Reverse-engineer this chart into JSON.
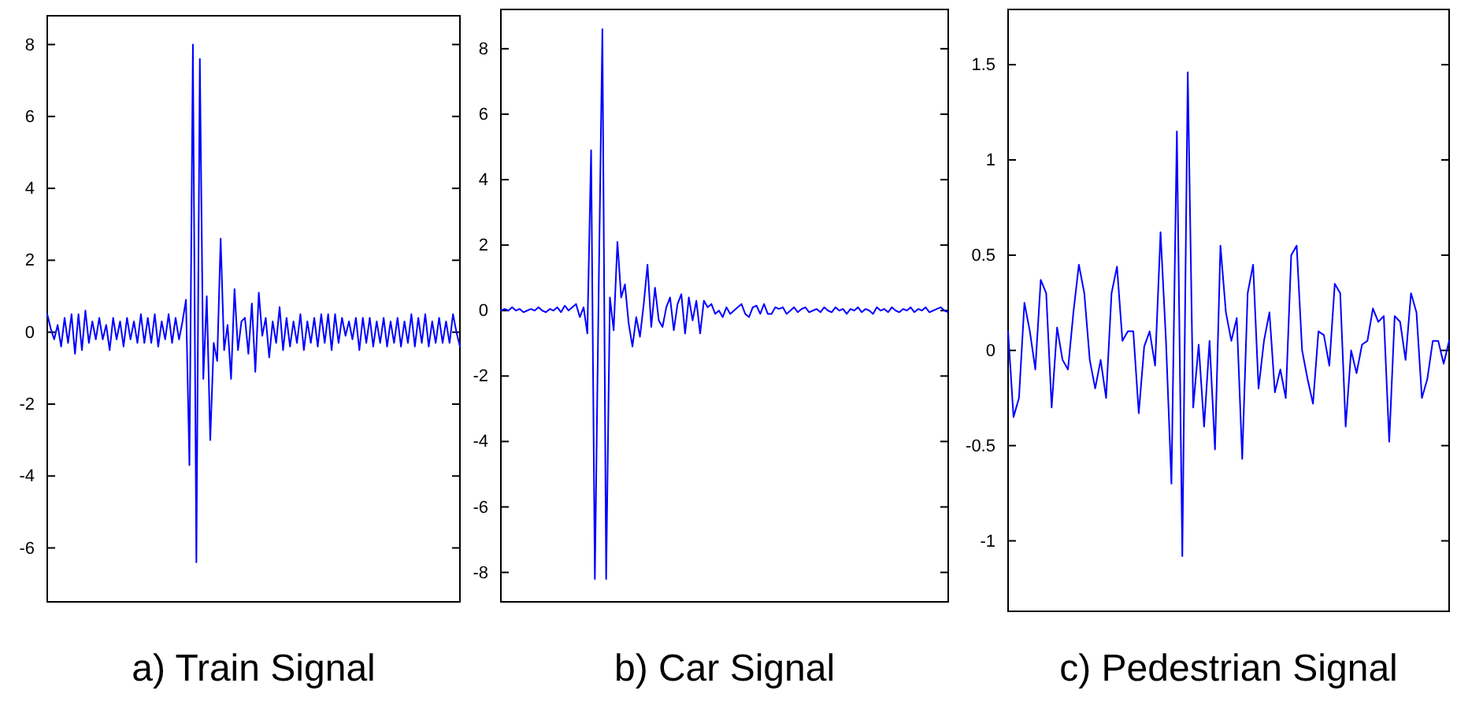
{
  "chart_data": [
    {
      "type": "line",
      "title": "a) Train Signal",
      "tick_labels": "y",
      "ylim": [
        -7.5,
        8.8
      ],
      "yticks": [
        -6,
        -4,
        -2,
        0,
        2,
        4,
        6,
        8
      ],
      "categories": [
        null,
        null,
        null,
        null,
        null,
        null,
        null,
        null,
        null,
        null,
        null,
        null,
        null,
        null,
        null,
        null,
        null,
        null,
        null,
        null,
        null,
        null,
        null,
        null,
        null,
        null,
        null,
        null,
        null,
        null,
        null,
        null,
        null,
        null,
        null,
        null,
        null,
        null,
        null,
        null,
        null,
        null,
        null,
        null,
        null,
        null,
        null,
        null,
        null,
        null,
        null,
        null,
        null,
        null,
        null,
        null,
        null,
        null,
        null,
        null,
        null,
        null,
        null,
        null,
        null,
        null,
        null,
        null,
        null,
        null,
        null,
        null,
        null,
        null,
        null,
        null,
        null,
        null,
        null,
        null,
        null,
        null,
        null,
        null,
        null,
        null,
        null,
        null,
        null,
        null,
        null,
        null,
        null,
        null,
        null,
        null,
        null,
        null,
        null,
        null,
        null,
        null,
        null,
        null,
        null,
        null,
        null,
        null,
        null,
        null,
        null,
        null,
        null,
        null,
        null,
        null,
        null,
        null,
        null,
        null
      ],
      "series": [
        {
          "color": "#0000ff",
          "values": [
            0.5,
            0.1,
            -0.2,
            0.2,
            -0.4,
            0.4,
            -0.3,
            0.5,
            -0.6,
            0.5,
            -0.5,
            0.6,
            -0.3,
            0.3,
            -0.2,
            0.4,
            -0.2,
            0.2,
            -0.5,
            0.4,
            -0.2,
            0.3,
            -0.4,
            0.4,
            -0.2,
            0.3,
            -0.3,
            0.5,
            -0.3,
            0.4,
            -0.3,
            0.5,
            -0.4,
            0.3,
            -0.2,
            0.5,
            -0.3,
            0.4,
            -0.2,
            0.3,
            0.9,
            -3.7,
            8.0,
            -6.4,
            7.6,
            -1.3,
            1.0,
            -3.0,
            -0.3,
            -0.8,
            2.6,
            -0.5,
            0.2,
            -1.3,
            1.2,
            -0.5,
            0.3,
            0.4,
            -0.6,
            0.8,
            -1.1,
            1.1,
            -0.1,
            0.4,
            -0.7,
            0.3,
            -0.3,
            0.7,
            -0.5,
            0.4,
            -0.4,
            0.3,
            -0.3,
            0.5,
            -0.5,
            0.3,
            -0.3,
            0.4,
            -0.4,
            0.5,
            -0.3,
            0.5,
            -0.5,
            0.5,
            -0.3,
            0.4,
            -0.1,
            0.3,
            -0.2,
            0.4,
            -0.5,
            0.4,
            -0.3,
            0.4,
            -0.4,
            0.3,
            -0.3,
            0.4,
            -0.4,
            0.3,
            -0.3,
            0.4,
            -0.4,
            0.3,
            -0.3,
            0.5,
            -0.4,
            0.4,
            -0.3,
            0.5,
            -0.4,
            0.3,
            -0.3,
            0.4,
            -0.3,
            0.3,
            -0.3,
            0.5,
            0.0,
            -0.4
          ]
        }
      ]
    },
    {
      "type": "line",
      "title": "b) Car Signal",
      "tick_labels": "y",
      "ylim": [
        -8.9,
        9.2
      ],
      "yticks": [
        -8,
        -6,
        -4,
        -2,
        0,
        2,
        4,
        6,
        8
      ],
      "categories": [
        null,
        null,
        null,
        null,
        null,
        null,
        null,
        null,
        null,
        null,
        null,
        null,
        null,
        null,
        null,
        null,
        null,
        null,
        null,
        null,
        null,
        null,
        null,
        null,
        null,
        null,
        null,
        null,
        null,
        null,
        null,
        null,
        null,
        null,
        null,
        null,
        null,
        null,
        null,
        null,
        null,
        null,
        null,
        null,
        null,
        null,
        null,
        null,
        null,
        null,
        null,
        null,
        null,
        null,
        null,
        null,
        null,
        null,
        null,
        null,
        null,
        null,
        null,
        null,
        null,
        null,
        null,
        null,
        null,
        null,
        null,
        null,
        null,
        null,
        null,
        null,
        null,
        null,
        null,
        null,
        null,
        null,
        null,
        null,
        null,
        null,
        null,
        null,
        null,
        null,
        null,
        null,
        null,
        null,
        null,
        null,
        null,
        null,
        null,
        null,
        null,
        null,
        null,
        null,
        null,
        null,
        null,
        null,
        null,
        null,
        null,
        null,
        null,
        null,
        null,
        null,
        null,
        null,
        null,
        null
      ],
      "series": [
        {
          "color": "#0000ff",
          "values": [
            0.0,
            0.05,
            0.0,
            0.1,
            0.0,
            0.05,
            -0.05,
            0.0,
            0.05,
            0.0,
            0.1,
            0.0,
            -0.05,
            0.05,
            0.0,
            0.1,
            -0.05,
            0.15,
            0.0,
            0.1,
            0.2,
            -0.2,
            0.1,
            -0.7,
            4.9,
            -8.2,
            0.5,
            8.6,
            -8.2,
            0.4,
            -0.6,
            2.1,
            0.4,
            0.8,
            -0.4,
            -1.1,
            -0.2,
            -0.8,
            0.2,
            1.4,
            -0.5,
            0.7,
            -0.3,
            -0.5,
            0.1,
            0.4,
            -0.6,
            0.2,
            0.5,
            -0.7,
            0.4,
            -0.3,
            0.3,
            -0.7,
            0.3,
            0.1,
            0.2,
            -0.1,
            0.0,
            -0.2,
            0.1,
            -0.1,
            0.0,
            0.1,
            0.2,
            -0.1,
            -0.2,
            0.1,
            0.15,
            -0.1,
            0.2,
            -0.1,
            -0.1,
            0.1,
            0.05,
            0.1,
            -0.1,
            0.0,
            0.1,
            -0.05,
            0.05,
            0.1,
            -0.05,
            0.0,
            0.05,
            -0.05,
            0.1,
            0.0,
            -0.05,
            0.1,
            0.0,
            0.05,
            -0.1,
            0.05,
            0.0,
            0.1,
            -0.05,
            0.05,
            0.0,
            -0.1,
            0.1,
            0.0,
            0.05,
            -0.05,
            0.1,
            0.0,
            -0.05,
            0.05,
            0.0,
            0.1,
            -0.05,
            0.05,
            0.0,
            0.1,
            -0.05,
            0.0,
            0.05,
            0.1,
            0.0,
            -0.05
          ]
        }
      ]
    },
    {
      "type": "line",
      "title": "c) Pedestrian Signal",
      "tick_labels": "y",
      "ylim": [
        -1.37,
        1.79
      ],
      "yticks": [
        -1,
        -0.5,
        0,
        0.5,
        1,
        1.5
      ],
      "categories": [
        null,
        null,
        null,
        null,
        null,
        null,
        null,
        null,
        null,
        null,
        null,
        null,
        null,
        null,
        null,
        null,
        null,
        null,
        null,
        null,
        null,
        null,
        null,
        null,
        null,
        null,
        null,
        null,
        null,
        null,
        null,
        null,
        null,
        null,
        null,
        null,
        null,
        null,
        null,
        null,
        null,
        null,
        null,
        null,
        null,
        null,
        null,
        null,
        null,
        null,
        null,
        null,
        null,
        null,
        null,
        null,
        null,
        null,
        null,
        null,
        null,
        null,
        null,
        null,
        null,
        null,
        null,
        null,
        null,
        null,
        null,
        null,
        null,
        null,
        null,
        null,
        null,
        null,
        null,
        null,
        null,
        null
      ],
      "series": [
        {
          "color": "#0000ff",
          "values": [
            0.1,
            -0.35,
            -0.25,
            0.25,
            0.1,
            -0.1,
            0.37,
            0.3,
            -0.3,
            0.12,
            -0.05,
            -0.1,
            0.2,
            0.45,
            0.3,
            -0.05,
            -0.2,
            -0.05,
            -0.25,
            0.3,
            0.44,
            0.05,
            0.1,
            0.1,
            -0.33,
            0.02,
            0.1,
            -0.08,
            0.62,
            0.05,
            -0.7,
            1.15,
            -1.08,
            1.46,
            -0.3,
            0.03,
            -0.4,
            0.05,
            -0.52,
            0.55,
            0.2,
            0.05,
            0.17,
            -0.57,
            0.3,
            0.45,
            -0.2,
            0.05,
            0.2,
            -0.22,
            -0.1,
            -0.25,
            0.5,
            0.55,
            0.0,
            -0.15,
            -0.28,
            0.1,
            0.08,
            -0.08,
            0.35,
            0.3,
            -0.4,
            0.0,
            -0.12,
            0.03,
            0.05,
            0.22,
            0.15,
            0.18,
            -0.48,
            0.18,
            0.15,
            -0.05,
            0.3,
            0.2,
            -0.25,
            -0.15,
            0.05,
            0.05,
            -0.07,
            0.05
          ]
        }
      ]
    }
  ]
}
